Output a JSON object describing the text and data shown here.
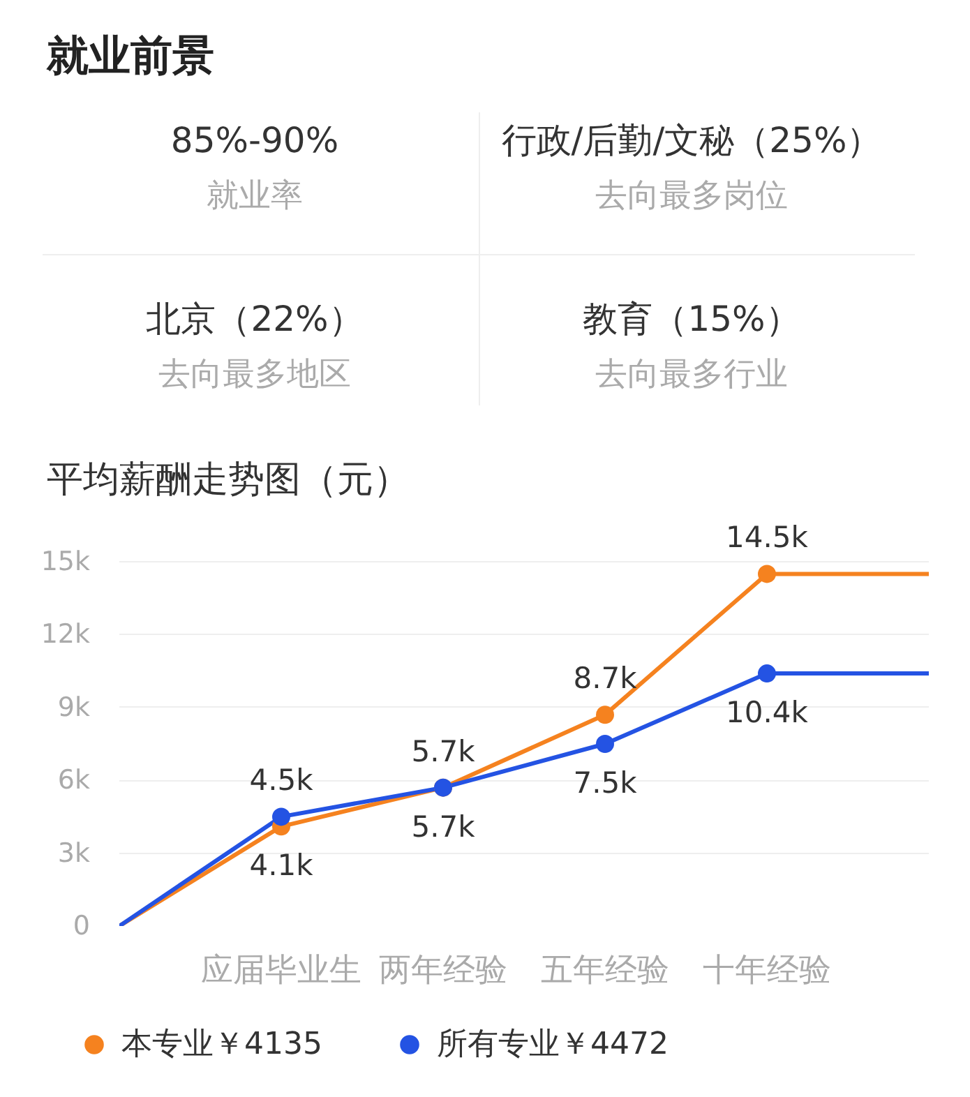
{
  "chart_data": [
    {
      "type": "other",
      "title": "就业前景",
      "annotations": [
        "85%-90%",
        "就业率",
        "行政/后勤/文秘（25%）",
        "去向最多岗位",
        "北京（22%）",
        "去向最多地区",
        "教育（15%）",
        "去向最多行业"
      ]
    },
    {
      "type": "line",
      "title": "平均薪酬走势图（元）",
      "categories": [
        null,
        "应届毕业生",
        "两年经验",
        "五年经验",
        "十年经验",
        null
      ],
      "ylim": [
        0,
        15
      ],
      "yticks": [
        0,
        {
          "value": 3,
          "label": "3k"
        },
        {
          "value": 6,
          "label": "6k"
        },
        {
          "value": 9,
          "label": "9k"
        },
        {
          "value": 12,
          "label": "12k"
        },
        {
          "value": 15,
          "label": "15k"
        }
      ],
      "grid": "y",
      "legend": "bottom",
      "series": [
        {
          "type": "line",
          "color": "#f5821f",
          "values": [
            0,
            4.1,
            5.7,
            8.7,
            14.5,
            14.5
          ]
        },
        {
          "type": "line",
          "color": "#2453e3",
          "values": [
            0,
            4.5,
            5.7,
            7.5,
            10.4,
            10.4
          ]
        },
        {
          "type": "scatter",
          "marker": "circle",
          "name": "本专业￥4135",
          "color": "#f5821f",
          "values": [
            null,
            4.1,
            5.7,
            8.7,
            14.5,
            null
          ],
          "value_labels": [
            null,
            "4.1k",
            "5.7k",
            "8.7k",
            "14.5k",
            null
          ]
        },
        {
          "type": "scatter",
          "marker": "circle",
          "name": "所有专业￥4472",
          "color": "#2453e3",
          "values": [
            null,
            4.5,
            5.7,
            7.5,
            10.4,
            null
          ],
          "value_labels": [
            null,
            "4.5k",
            "5.7k",
            "7.5k",
            "10.4k",
            null
          ]
        }
      ]
    }
  ]
}
